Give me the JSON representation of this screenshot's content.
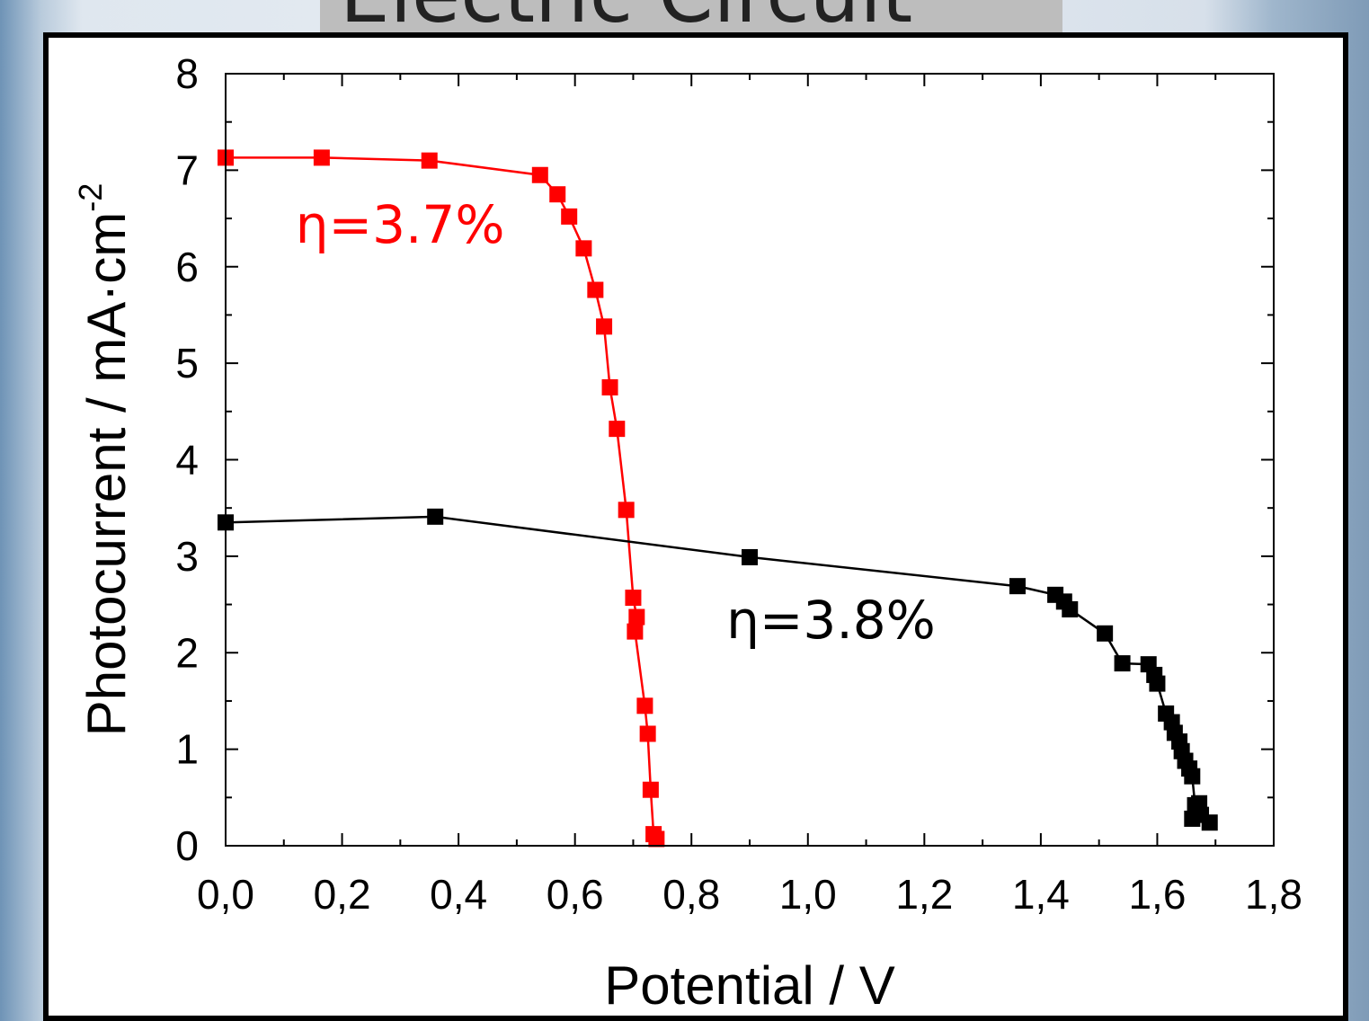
{
  "slide": {
    "title": "Electric Circuit"
  },
  "chart_data": {
    "type": "line",
    "xlabel": "Potential / V",
    "ylabel_main": "Photocurrent / mA·cm",
    "ylabel_sup": "-2",
    "xlim": [
      0,
      1.8
    ],
    "ylim": [
      0,
      8
    ],
    "x_major_ticks": [
      0,
      0.2,
      0.4,
      0.6,
      0.8,
      1.0,
      1.2,
      1.4,
      1.6,
      1.8
    ],
    "x_tick_labels": [
      "0,0",
      "0,2",
      "0,4",
      "0,6",
      "0,8",
      "1,0",
      "1,2",
      "1,4",
      "1,6",
      "1,8"
    ],
    "y_major_ticks": [
      0,
      1,
      2,
      3,
      4,
      5,
      6,
      7,
      8
    ],
    "y_tick_labels": [
      "0",
      "1",
      "2",
      "3",
      "4",
      "5",
      "6",
      "7",
      "8"
    ],
    "grid": false,
    "legend": "none",
    "series": [
      {
        "color": "#ff0000",
        "annotation": "η=3.7%",
        "annotation_at": [
          0.12,
          6.25
        ],
        "points": [
          [
            0.0,
            7.13
          ],
          [
            0.165,
            7.13
          ],
          [
            0.35,
            7.1
          ],
          [
            0.54,
            6.95
          ],
          [
            0.57,
            6.75
          ],
          [
            0.59,
            6.52
          ],
          [
            0.615,
            6.19
          ],
          [
            0.635,
            5.76
          ],
          [
            0.65,
            5.38
          ],
          [
            0.66,
            4.75
          ],
          [
            0.672,
            4.32
          ],
          [
            0.688,
            3.48
          ],
          [
            0.7,
            2.57
          ],
          [
            0.706,
            2.37
          ],
          [
            0.703,
            2.22
          ],
          [
            0.72,
            1.45
          ],
          [
            0.725,
            1.16
          ],
          [
            0.73,
            0.58
          ],
          [
            0.735,
            0.12
          ],
          [
            0.74,
            0.07
          ]
        ]
      },
      {
        "color": "#000000",
        "annotation": "η=3.8%",
        "annotation_at": [
          0.86,
          2.15
        ],
        "points": [
          [
            0.0,
            3.35
          ],
          [
            0.36,
            3.41
          ],
          [
            0.9,
            2.99
          ],
          [
            1.36,
            2.69
          ],
          [
            1.425,
            2.6
          ],
          [
            1.44,
            2.53
          ],
          [
            1.45,
            2.45
          ],
          [
            1.51,
            2.2
          ],
          [
            1.54,
            1.89
          ],
          [
            1.585,
            1.88
          ],
          [
            1.595,
            1.77
          ],
          [
            1.6,
            1.68
          ],
          [
            1.615,
            1.37
          ],
          [
            1.625,
            1.28
          ],
          [
            1.63,
            1.17
          ],
          [
            1.638,
            1.08
          ],
          [
            1.642,
            0.98
          ],
          [
            1.648,
            0.88
          ],
          [
            1.655,
            0.8
          ],
          [
            1.66,
            0.72
          ],
          [
            1.665,
            0.42
          ],
          [
            1.672,
            0.44
          ],
          [
            1.675,
            0.32
          ],
          [
            1.66,
            0.28
          ],
          [
            1.69,
            0.24
          ]
        ]
      }
    ]
  }
}
